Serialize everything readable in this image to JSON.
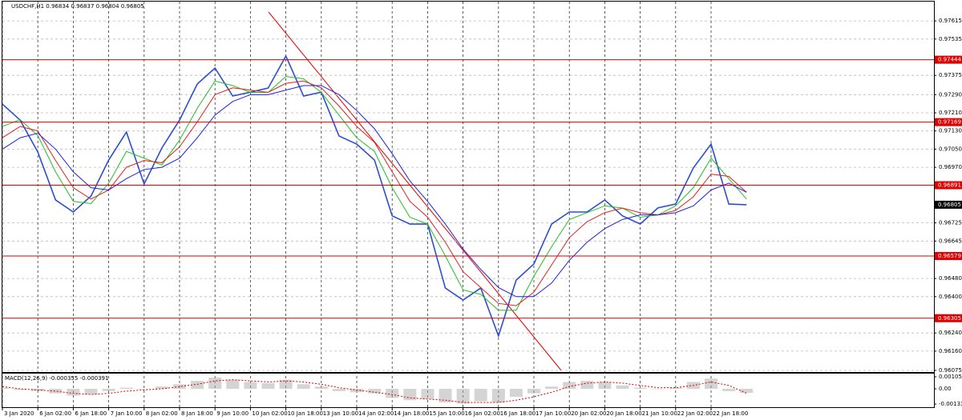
{
  "chart_data": [
    {
      "type": "line",
      "title": "USDCHF,H1  0.96834 0.96837 0.96804 0.96805",
      "categories": [
        "3 Jan 2020",
        null,
        "6 Jan 02:00",
        null,
        "6 Jan 18:00",
        null,
        "7 Jan 10:00",
        null,
        "8 Jan 02:00",
        null,
        "8 Jan 18:00",
        null,
        "9 Jan 10:00",
        null,
        "10 Jan 02:00",
        null,
        "10 Jan 18:00",
        null,
        "13 Jan 10:00",
        null,
        "14 Jan 02:00",
        null,
        "14 Jan 18:00",
        null,
        "15 Jan 10:00",
        null,
        "16 Jan 02:00",
        null,
        "16 Jan 18:00",
        null,
        "17 Jan 10:00",
        null,
        "20 Jan 02:00",
        null,
        "20 Jan 18:00",
        null,
        "21 Jan 10:00",
        null,
        "22 Jan 02:00",
        null,
        "22 Jan 18:00",
        null,
        null
      ],
      "series": [
        {
          "color": "#2a4fcf",
          "values": [
            0.97248,
            0.97178,
            0.97037,
            0.96826,
            0.96773,
            0.96843,
            0.97002,
            0.97125,
            0.96896,
            0.97055,
            0.97178,
            0.97337,
            0.97407,
            0.97284,
            0.97301,
            0.97319,
            0.9746,
            0.97284,
            0.97301,
            0.97108,
            0.97072,
            0.97002,
            0.96756,
            0.9672,
            0.9672,
            0.96438,
            0.96385,
            0.96438,
            0.96227,
            0.96473,
            0.96544,
            0.9672,
            0.96773,
            0.96773,
            0.96826,
            0.96756,
            0.9672,
            0.96791,
            0.96808,
            0.96967,
            0.97072,
            0.96808,
            0.96805
          ]
        },
        {
          "color": "#22c022",
          "values": [
            0.9715,
            0.9718,
            0.9711,
            0.9695,
            0.9682,
            0.9681,
            0.969,
            0.9704,
            0.9701,
            0.9698,
            0.9709,
            0.9723,
            0.9735,
            0.9733,
            0.973,
            0.973,
            0.9737,
            0.9736,
            0.973,
            0.972,
            0.971,
            0.9704,
            0.9688,
            0.9675,
            0.9672,
            0.9658,
            0.9643,
            0.9641,
            0.9634,
            0.9634,
            0.9649,
            0.9662,
            0.9674,
            0.9677,
            0.968,
            0.9679,
            0.9675,
            0.9676,
            0.968,
            0.9688,
            0.9701,
            0.9692,
            0.9683
          ]
        },
        {
          "color": "#e02020",
          "values": [
            0.971,
            0.9715,
            0.9713,
            0.97,
            0.9688,
            0.9683,
            0.9687,
            0.9697,
            0.97,
            0.9699,
            0.9706,
            0.9717,
            0.9729,
            0.9732,
            0.9731,
            0.973,
            0.9734,
            0.9735,
            0.9732,
            0.9724,
            0.9715,
            0.9708,
            0.9695,
            0.9682,
            0.9675,
            0.9664,
            0.9651,
            0.9644,
            0.9637,
            0.9636,
            0.9642,
            0.9654,
            0.9666,
            0.9673,
            0.9677,
            0.9679,
            0.9677,
            0.9676,
            0.9678,
            0.9684,
            0.9694,
            0.9693,
            0.9686
          ]
        },
        {
          "color": "#2020e0",
          "values": [
            0.9705,
            0.971,
            0.9712,
            0.9705,
            0.9695,
            0.9688,
            0.9687,
            0.9692,
            0.9696,
            0.9697,
            0.9701,
            0.971,
            0.972,
            0.9726,
            0.9729,
            0.9729,
            0.9731,
            0.9733,
            0.9733,
            0.9729,
            0.9722,
            0.9714,
            0.9703,
            0.9691,
            0.9682,
            0.9672,
            0.9661,
            0.9652,
            0.9644,
            0.964,
            0.964,
            0.9646,
            0.9656,
            0.9664,
            0.967,
            0.9674,
            0.9676,
            0.9676,
            0.9677,
            0.968,
            0.9687,
            0.969,
            0.9686
          ]
        }
      ],
      "ylim": [
        0.96068,
        0.977
      ],
      "yticks": [
        0.97615,
        0.97535,
        0.97375,
        {
          "value": 0.9729,
          "label": "0.97290"
        },
        {
          "value": 0.9721,
          "label": "0.97210"
        },
        {
          "value": 0.9713,
          "label": "0.97130"
        },
        {
          "value": 0.9705,
          "label": "0.97050"
        },
        {
          "value": 0.9697,
          "label": "0.96970"
        },
        0.96725,
        0.96645,
        {
          "value": 0.9648,
          "label": "0.96480"
        },
        {
          "value": 0.964,
          "label": "0.96400"
        },
        {
          "value": 0.9624,
          "label": "0.96240"
        },
        {
          "value": 0.9616,
          "label": "0.96160"
        },
        0.96075
      ],
      "levels": [
        0.97444,
        0.97169,
        0.96891,
        0.96579,
        0.96305
      ],
      "level_color": "#e00000",
      "last_price": 0.96805,
      "grid": true
    },
    {
      "type": "bar",
      "title": "MACD(12,26,9) -0.000355 -0.000391",
      "values": [
        0.0001,
        -0.0001,
        -0.0002,
        -0.0004,
        -0.0006,
        -0.0005,
        -0.0002,
        0.0001,
        0,
        0.0002,
        0.0004,
        0.0007,
        0.001,
        0.0008,
        0.0006,
        0.0005,
        0.0008,
        0.0004,
        0.0002,
        -0.0002,
        -0.0003,
        -0.0004,
        -0.0008,
        -0.001,
        -0.0009,
        -0.0012,
        -0.0013,
        -0.0011,
        -0.0012,
        -0.0007,
        -0.0004,
        0.0002,
        0.0006,
        0.0007,
        0.0006,
        0.0003,
        0.0001,
        0,
        0.0001,
        0.0006,
        0.0009,
        -0.0002,
        -0.000355
      ],
      "color": "#aaaaaa",
      "signal": [
        0.0002,
        0,
        -0.0001,
        -0.0002,
        -0.0004,
        -0.0005,
        -0.0004,
        -0.0002,
        -0.0001,
        0,
        0.0002,
        0.0004,
        0.0007,
        0.0008,
        0.0007,
        0.0006,
        0.0007,
        0.0006,
        0.0004,
        0.0001,
        -0.0001,
        -0.0003,
        -0.0005,
        -0.0008,
        -0.0009,
        -0.001,
        -0.0012,
        -0.0012,
        -0.0012,
        -0.001,
        -0.0007,
        -0.0003,
        0.0002,
        0.0005,
        0.0006,
        0.0005,
        0.0003,
        0.0001,
        0.0001,
        0.0003,
        0.0006,
        0.0003,
        -0.000391
      ],
      "signal_color": "#e00000",
      "ylim": [
        -0.001688,
        0.00134
      ],
      "yticks": [
        0.001058,
        {
          "value": 0,
          "label": "0.00"
        },
        -0.001336
      ]
    }
  ]
}
